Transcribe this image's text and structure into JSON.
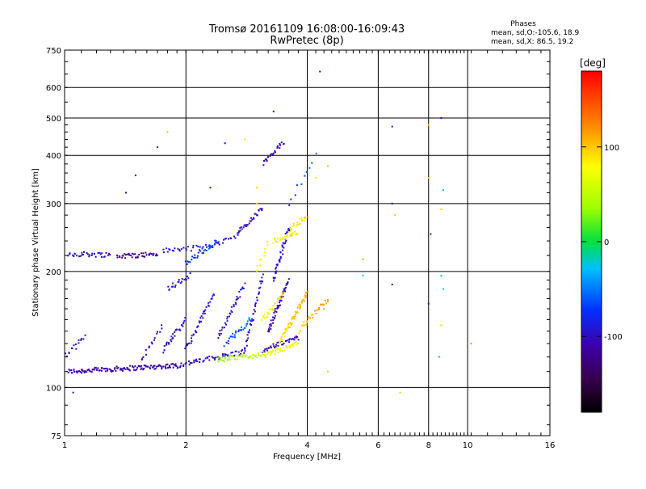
{
  "chart_data": {
    "type": "scatter",
    "title_line1": "Tromsø 20161109 16:08:00-16:09:43",
    "title_line2": "RwPretec (8p)",
    "xlabel": "Frequency [MHz]",
    "ylabel": "Stationary phase Virtual Height [km]",
    "x_scale": "log",
    "y_scale": "log",
    "xlim": [
      1,
      16
    ],
    "ylim": [
      75,
      750
    ],
    "x_ticks": [
      1,
      2,
      4,
      6,
      8,
      10,
      16
    ],
    "x_tick_labels": [
      "1",
      "2",
      "4",
      "6",
      "8",
      "10",
      "16"
    ],
    "y_ticks": [
      75,
      100,
      200,
      300,
      400,
      500,
      600,
      750
    ],
    "y_tick_labels": [
      "75",
      "100",
      "200",
      "300",
      "400",
      "500",
      "600",
      "750"
    ],
    "grid": true,
    "legend": {
      "heading": "Phases",
      "line1": "mean, sd,O:-105.6, 18.9",
      "line2": "mean, sd,X:  86.5, 19.2"
    },
    "colorbar": {
      "label": "[deg]",
      "range": [
        -180,
        180
      ],
      "ticks": [
        100,
        0,
        -100
      ],
      "tick_labels": [
        "100",
        "0",
        "-100"
      ]
    },
    "series": [
      {
        "phase": "O",
        "traces": [
          {
            "f0": 1.02,
            "f1": 1.9,
            "h0": 110,
            "h1": 114,
            "n": 130,
            "ph0": -110,
            "ph1": -110
          },
          {
            "f0": 1.9,
            "f1": 2.8,
            "h0": 114,
            "h1": 124,
            "n": 60,
            "ph0": -105,
            "ph1": -95
          },
          {
            "f0": 1.0,
            "f1": 1.12,
            "h0": 120,
            "h1": 135,
            "n": 16,
            "ph0": -100,
            "ph1": -100
          },
          {
            "f0": 1.02,
            "f1": 1.3,
            "h0": 222,
            "h1": 221,
            "n": 34,
            "ph0": -100,
            "ph1": -100
          },
          {
            "f0": 1.35,
            "f1": 1.7,
            "h0": 219,
            "h1": 222,
            "n": 40,
            "ph0": -120,
            "ph1": -115
          },
          {
            "f0": 1.75,
            "f1": 2.3,
            "h0": 226,
            "h1": 232,
            "n": 30,
            "ph0": -100,
            "ph1": -90
          },
          {
            "f0": 2.3,
            "f1": 2.7,
            "h0": 232,
            "h1": 250,
            "n": 18,
            "ph0": -100,
            "ph1": -100
          },
          {
            "f0": 2.7,
            "f1": 3.1,
            "h0": 252,
            "h1": 292,
            "n": 30,
            "ph0": -100,
            "ph1": -100
          },
          {
            "f0": 3.1,
            "f1": 3.5,
            "h0": 380,
            "h1": 432,
            "n": 24,
            "ph0": -110,
            "ph1": -100
          },
          {
            "f0": 1.55,
            "f1": 1.75,
            "h0": 118,
            "h1": 145,
            "n": 16,
            "ph0": -110,
            "ph1": -100
          },
          {
            "f0": 1.75,
            "f1": 2.0,
            "h0": 125,
            "h1": 150,
            "n": 30,
            "ph0": -100,
            "ph1": -90
          },
          {
            "f0": 1.8,
            "f1": 2.05,
            "h0": 180,
            "h1": 195,
            "n": 20,
            "ph0": -95,
            "ph1": -90
          },
          {
            "f0": 2.0,
            "f1": 2.35,
            "h0": 125,
            "h1": 175,
            "n": 40,
            "ph0": -100,
            "ph1": -90
          },
          {
            "f0": 2.0,
            "f1": 2.4,
            "h0": 210,
            "h1": 240,
            "n": 30,
            "ph0": -80,
            "ph1": -60
          },
          {
            "f0": 2.4,
            "f1": 2.8,
            "h0": 135,
            "h1": 185,
            "n": 36,
            "ph0": -100,
            "ph1": -90
          },
          {
            "f0": 2.5,
            "f1": 2.9,
            "h0": 130,
            "h1": 150,
            "n": 30,
            "ph0": -70,
            "ph1": -50
          },
          {
            "f0": 2.8,
            "f1": 3.1,
            "h0": 125,
            "h1": 195,
            "n": 40,
            "ph0": -100,
            "ph1": -95
          },
          {
            "f0": 3.1,
            "f1": 3.8,
            "h0": 125,
            "h1": 135,
            "n": 40,
            "ph0": -100,
            "ph1": -100
          },
          {
            "f0": 3.2,
            "f1": 3.6,
            "h0": 140,
            "h1": 190,
            "n": 50,
            "ph0": -110,
            "ph1": -100
          },
          {
            "f0": 3.3,
            "f1": 3.6,
            "h0": 190,
            "h1": 260,
            "n": 40,
            "ph0": -100,
            "ph1": -90
          },
          {
            "f0": 3.6,
            "f1": 4.2,
            "h0": 300,
            "h1": 400,
            "n": 10,
            "ph0": -80,
            "ph1": -60
          }
        ]
      },
      {
        "phase": "X",
        "traces": [
          {
            "f0": 2.4,
            "f1": 3.2,
            "h0": 118,
            "h1": 122,
            "n": 50,
            "ph0": 30,
            "ph1": 60
          },
          {
            "f0": 3.2,
            "f1": 3.8,
            "h0": 122,
            "h1": 130,
            "n": 40,
            "ph0": 70,
            "ph1": 85
          },
          {
            "f0": 3.4,
            "f1": 4.0,
            "h0": 130,
            "h1": 175,
            "n": 60,
            "ph0": 85,
            "ph1": 110
          },
          {
            "f0": 3.8,
            "f1": 4.5,
            "h0": 140,
            "h1": 170,
            "n": 30,
            "ph0": 95,
            "ph1": 120
          },
          {
            "f0": 3.1,
            "f1": 3.5,
            "h0": 150,
            "h1": 175,
            "n": 30,
            "ph0": 80,
            "ph1": 90
          },
          {
            "f0": 3.3,
            "f1": 3.8,
            "h0": 240,
            "h1": 252,
            "n": 26,
            "ph0": 85,
            "ph1": 90
          },
          {
            "f0": 3.6,
            "f1": 4.0,
            "h0": 255,
            "h1": 280,
            "n": 20,
            "ph0": 85,
            "ph1": 95
          },
          {
            "f0": 3.0,
            "f1": 3.2,
            "h0": 200,
            "h1": 240,
            "n": 10,
            "ph0": 70,
            "ph1": 85
          }
        ]
      }
    ],
    "scattered_points": [
      [
        4.3,
        660,
        -100
      ],
      [
        3.3,
        520,
        -100
      ],
      [
        1.8,
        460,
        30
      ],
      [
        1.7,
        420,
        -100
      ],
      [
        1.5,
        355,
        -100
      ],
      [
        1.42,
        320,
        -110
      ],
      [
        2.8,
        440,
        90
      ],
      [
        2.5,
        430,
        -90
      ],
      [
        2.3,
        330,
        -80
      ],
      [
        3.0,
        330,
        100
      ],
      [
        3.0,
        300,
        100
      ],
      [
        5.5,
        215,
        110
      ],
      [
        5.5,
        195,
        -20
      ],
      [
        4.4,
        160,
        110
      ],
      [
        4.5,
        110,
        100
      ],
      [
        6.5,
        475,
        -90
      ],
      [
        6.5,
        300,
        -100
      ],
      [
        6.6,
        280,
        100
      ],
      [
        6.5,
        185,
        -100
      ],
      [
        6.8,
        97,
        100
      ],
      [
        8.0,
        480,
        100
      ],
      [
        8.0,
        350,
        100
      ],
      [
        8.1,
        250,
        -90
      ],
      [
        8.0,
        165,
        -100
      ],
      [
        8.6,
        500,
        -100
      ],
      [
        8.7,
        325,
        -30
      ],
      [
        8.6,
        290,
        100
      ],
      [
        8.6,
        195,
        -30
      ],
      [
        8.7,
        180,
        -30
      ],
      [
        8.6,
        145,
        100
      ],
      [
        8.5,
        120,
        -20
      ],
      [
        10.2,
        130,
        120
      ],
      [
        1.05,
        97,
        -90
      ],
      [
        4.2,
        350,
        60
      ],
      [
        4.5,
        375,
        100
      ]
    ]
  }
}
